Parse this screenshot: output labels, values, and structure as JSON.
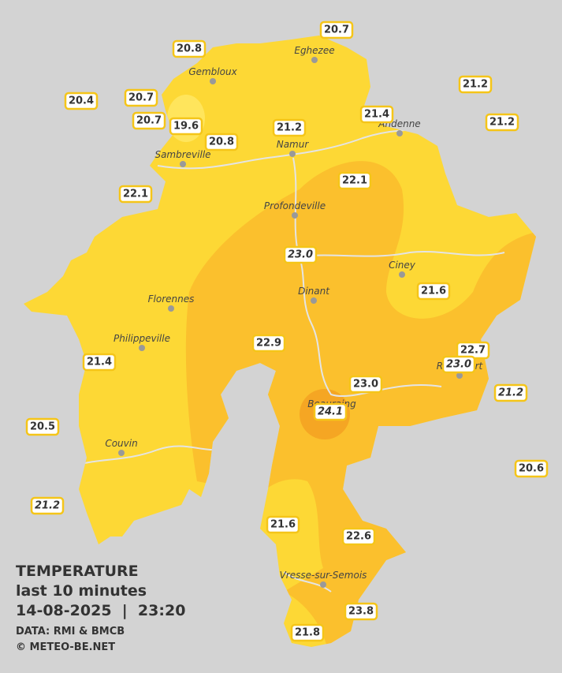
{
  "legend": {
    "title": "TEMPERATURE",
    "subtitle": "last 10 minutes",
    "datetime": "14-08-2025  |  23:20",
    "source": "DATA: RMI & BMCB",
    "credit": "© METEO-BE.NET"
  },
  "cities": [
    "Eghezee",
    "Gembloux",
    "Andenne",
    "Namur",
    "Sambreville",
    "Profondeville",
    "Ciney",
    "Dinant",
    "Florennes",
    "Philippeville",
    "Rochefort",
    "Beauraing",
    "Couvin",
    "Vresse-sur-Semois"
  ],
  "stations": [
    {
      "label": "20.7",
      "italic": false
    },
    {
      "label": "20.8",
      "italic": false
    },
    {
      "label": "21.2",
      "italic": false
    },
    {
      "label": "20.4",
      "italic": false
    },
    {
      "label": "20.7",
      "italic": false
    },
    {
      "label": "21.4",
      "italic": false
    },
    {
      "label": "21.2",
      "italic": false
    },
    {
      "label": "20.7",
      "italic": false
    },
    {
      "label": "19.6",
      "italic": false
    },
    {
      "label": "21.2",
      "italic": false
    },
    {
      "label": "20.8",
      "italic": false
    },
    {
      "label": "22.1",
      "italic": false
    },
    {
      "label": "22.1",
      "italic": false
    },
    {
      "label": "23.0",
      "italic": true
    },
    {
      "label": "21.6",
      "italic": false
    },
    {
      "label": "22.7",
      "italic": false
    },
    {
      "label": "22.9",
      "italic": false
    },
    {
      "label": "23.0",
      "italic": true
    },
    {
      "label": "21.4",
      "italic": false
    },
    {
      "label": "23.0",
      "italic": false
    },
    {
      "label": "21.2",
      "italic": true
    },
    {
      "label": "24.1",
      "italic": true
    },
    {
      "label": "20.5",
      "italic": false
    },
    {
      "label": "20.6",
      "italic": false
    },
    {
      "label": "21.2",
      "italic": true
    },
    {
      "label": "21.6",
      "italic": false
    },
    {
      "label": "22.6",
      "italic": false
    },
    {
      "label": "23.8",
      "italic": false
    },
    {
      "label": "21.8",
      "italic": false
    }
  ]
}
